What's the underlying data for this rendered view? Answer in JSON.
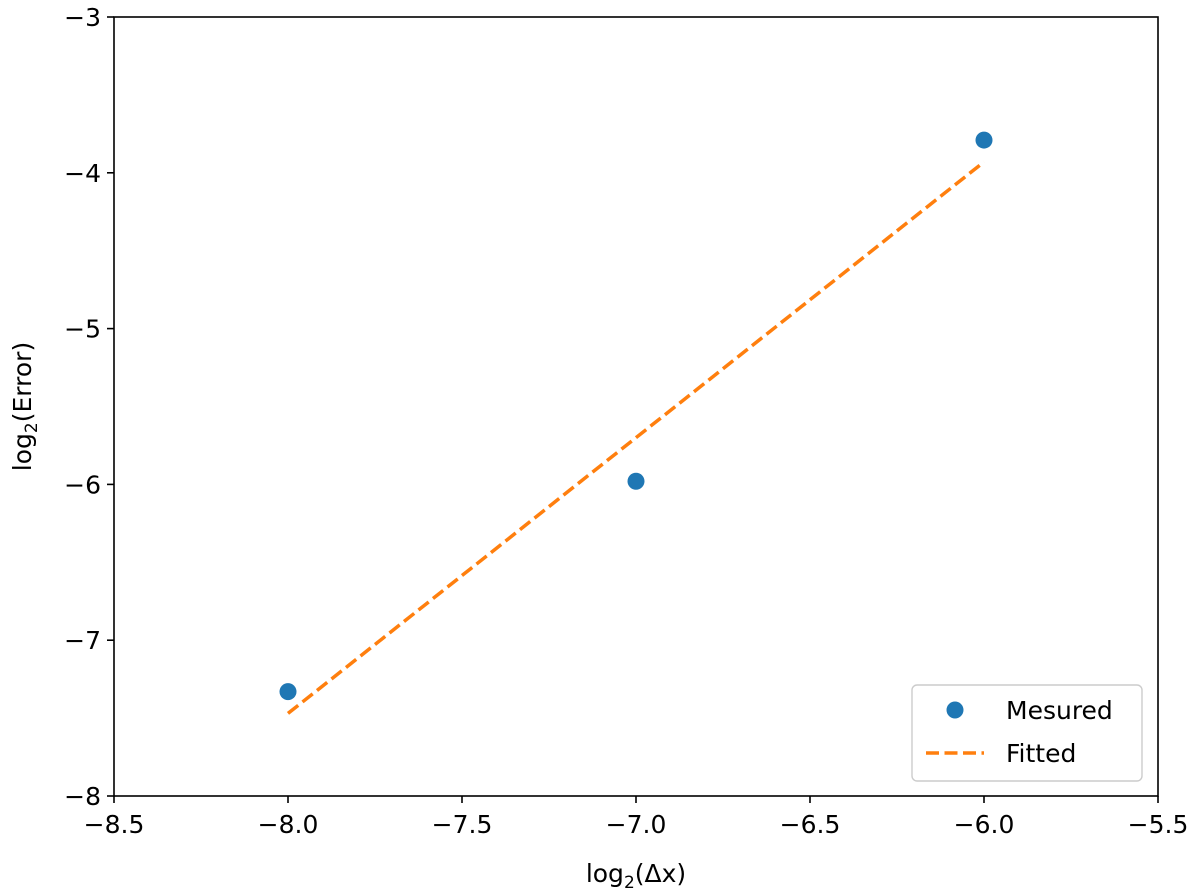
{
  "chart_data": {
    "type": "scatter",
    "title": "",
    "xlabel": {
      "prefix": "log",
      "subscript": "2",
      "suffix": "(Δx)"
    },
    "ylabel": {
      "prefix": "log",
      "subscript": "2",
      "suffix": "(Error)"
    },
    "xlim": [
      -8.5,
      -5.5
    ],
    "ylim": [
      -8,
      -3
    ],
    "xticks": [
      -8.5,
      -8.0,
      -7.5,
      -7.0,
      -6.5,
      -6.0,
      -5.5
    ],
    "xtick_labels": [
      "−8.5",
      "−8.0",
      "−7.5",
      "−7.0",
      "−6.5",
      "−6.0",
      "−5.5"
    ],
    "yticks": [
      -8,
      -7,
      -6,
      -5,
      -4,
      -3
    ],
    "ytick_labels": [
      "−8",
      "−7",
      "−6",
      "−5",
      "−4",
      "−3"
    ],
    "grid": false,
    "legend_position": "bottom-right",
    "series": [
      {
        "name": "Mesured",
        "kind": "scatter",
        "color": "#1f77b4",
        "x": [
          -8.0,
          -7.0,
          -6.0
        ],
        "y": [
          -7.33,
          -5.98,
          -3.79
        ]
      },
      {
        "name": "Fitted",
        "kind": "line",
        "style": "dashed",
        "color": "#ff7f0e",
        "x": [
          -8.0,
          -6.0
        ],
        "y": [
          -7.47,
          -3.93
        ]
      }
    ]
  }
}
